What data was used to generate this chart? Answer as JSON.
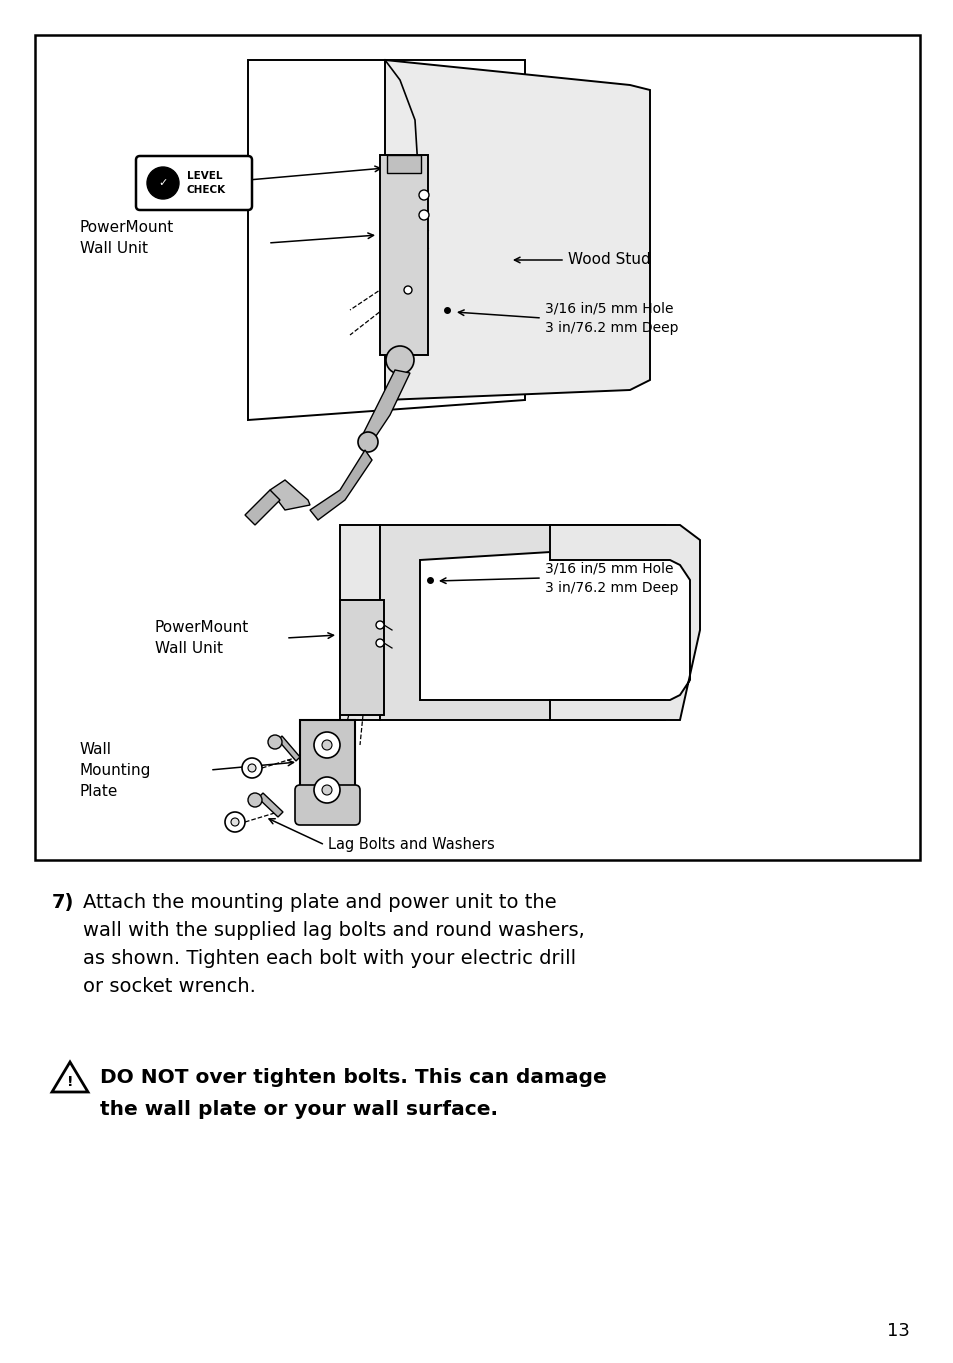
{
  "bg_color": "#ffffff",
  "border_color": "#000000",
  "page_number": "13",
  "label_wood_stud": "Wood Stud",
  "label_hole1": "3/16 in/5 mm Hole\n3 in/76.2 mm Deep",
  "label_hole2": "3/16 in/5 mm Hole\n3 in/76.2 mm Deep",
  "label_powermount1": "PowerMount\nWall Unit",
  "label_powermount2": "PowerMount\nWall Unit",
  "label_wall_mounting": "Wall\nMounting\nPlate",
  "label_lag_bolts": "Lag Bolts and Washers",
  "label_level_check_1": "LEVEL",
  "label_level_check_2": "CHECK",
  "step7_num": "7)",
  "step7_rest": "Attach the mounting plate and power unit to the\nwall with the supplied lag bolts and round washers,\nas shown. Tighten each bolt with your electric drill\nor socket wrench.",
  "warn_line1": "DO NOT over tighten bolts. This can damage",
  "warn_line2": "the wall plate or your wall surface."
}
